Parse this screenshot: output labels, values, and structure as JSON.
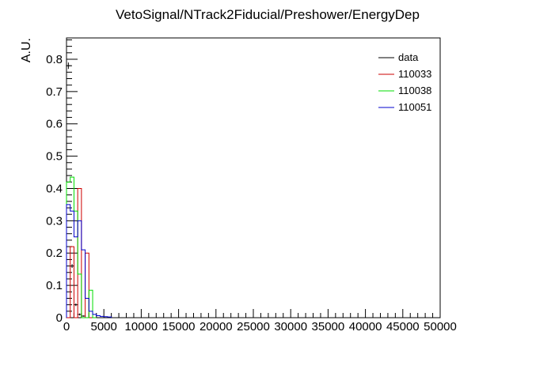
{
  "chart_data": {
    "type": "histogram",
    "title": "VetoSignal/NTrack2Fiducial/Preshower/EnergyDep",
    "xlabel": "",
    "ylabel": "A.U.",
    "xlim": [
      0,
      50000
    ],
    "ylim": [
      0,
      0.866
    ],
    "x_ticks": [
      0,
      5000,
      10000,
      15000,
      20000,
      25000,
      30000,
      35000,
      40000,
      45000,
      50000
    ],
    "x_tick_labels": [
      "0",
      "5000",
      "10000",
      "15000",
      "20000",
      "25000",
      "30000",
      "35000",
      "40000",
      "45000",
      "50000"
    ],
    "y_ticks": [
      0,
      0.1,
      0.2,
      0.3,
      0.4,
      0.5,
      0.6,
      0.7,
      0.8
    ],
    "y_tick_labels": [
      "0",
      "0.1",
      "0.2",
      "0.3",
      "0.4",
      "0.5",
      "0.6",
      "0.7",
      "0.8"
    ],
    "bin_width": 500,
    "legend_position": "top-right",
    "series": [
      {
        "name": "data",
        "color": "#000000",
        "style": "points",
        "x": [
          250,
          750,
          1250,
          1750,
          2250
        ],
        "values": [
          0.78,
          0.16,
          0.04,
          0.01,
          0.005
        ],
        "errors": [
          0.01,
          0.006,
          0.004,
          0.003,
          0.002
        ]
      },
      {
        "name": "110033",
        "color": "#cc0000",
        "style": "step",
        "bin_edges": [
          0,
          500,
          1000,
          1500,
          2000,
          2500,
          3000,
          3500,
          4000
        ],
        "values": [
          0.0,
          0.22,
          0.0,
          0.4,
          0.0,
          0.2,
          0.0,
          0.0
        ]
      },
      {
        "name": "110038",
        "color": "#00dd00",
        "style": "step",
        "bin_edges": [
          0,
          500,
          1000,
          1500,
          2000,
          2500,
          3000,
          3500,
          4000
        ],
        "values": [
          0.42,
          0.435,
          0.33,
          0.135,
          0.0,
          0.0,
          0.085,
          0.0
        ]
      },
      {
        "name": "110051",
        "color": "#0000cc",
        "style": "step",
        "bin_edges": [
          0,
          500,
          1000,
          1500,
          2000,
          2500,
          3000,
          3500,
          4000,
          4500,
          5000,
          5500,
          6000
        ],
        "values": [
          0.35,
          0.33,
          0.25,
          0.3,
          0.21,
          0.06,
          0.02,
          0.01,
          0.006,
          0.004,
          0.003,
          0.002
        ]
      }
    ]
  }
}
